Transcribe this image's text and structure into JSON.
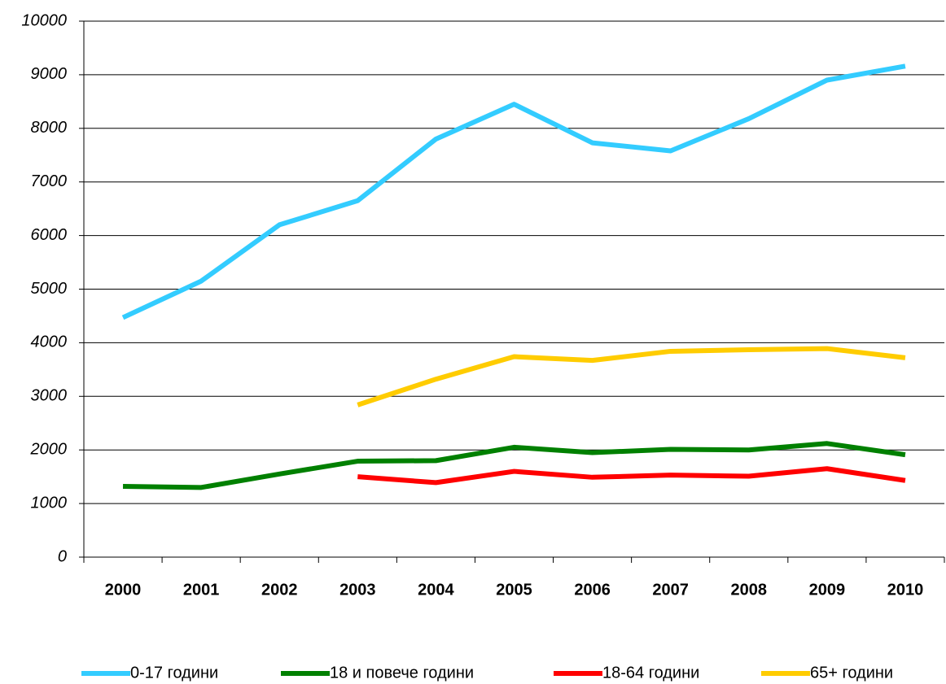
{
  "chart_data": {
    "type": "line",
    "categories": [
      "2000",
      "2001",
      "2002",
      "2003",
      "2004",
      "2005",
      "2006",
      "2007",
      "2008",
      "2009",
      "2010"
    ],
    "series": [
      {
        "name": "0-17 години",
        "color": "#33ccff",
        "values": [
          4470,
          5150,
          6200,
          6650,
          7800,
          8450,
          7730,
          7580,
          8180,
          8900,
          9160
        ]
      },
      {
        "name": "18 и повече години",
        "color": "#008000",
        "values": [
          1320,
          1300,
          1550,
          1790,
          1800,
          2050,
          1950,
          2010,
          2000,
          2120,
          1910
        ]
      },
      {
        "name": "18-64 години",
        "color": "#ff0000",
        "values": [
          null,
          null,
          null,
          1500,
          1390,
          1600,
          1490,
          1530,
          1510,
          1650,
          1430
        ]
      },
      {
        "name": "65+ години",
        "color": "#ffcc00",
        "values": [
          null,
          null,
          null,
          2840,
          3320,
          3740,
          3670,
          3840,
          3870,
          3890,
          3720
        ]
      }
    ],
    "ylim": [
      0,
      10000
    ],
    "yticks": [
      0,
      1000,
      2000,
      3000,
      4000,
      5000,
      6000,
      7000,
      8000,
      9000,
      10000
    ],
    "grid": true,
    "legend": "bottom"
  }
}
